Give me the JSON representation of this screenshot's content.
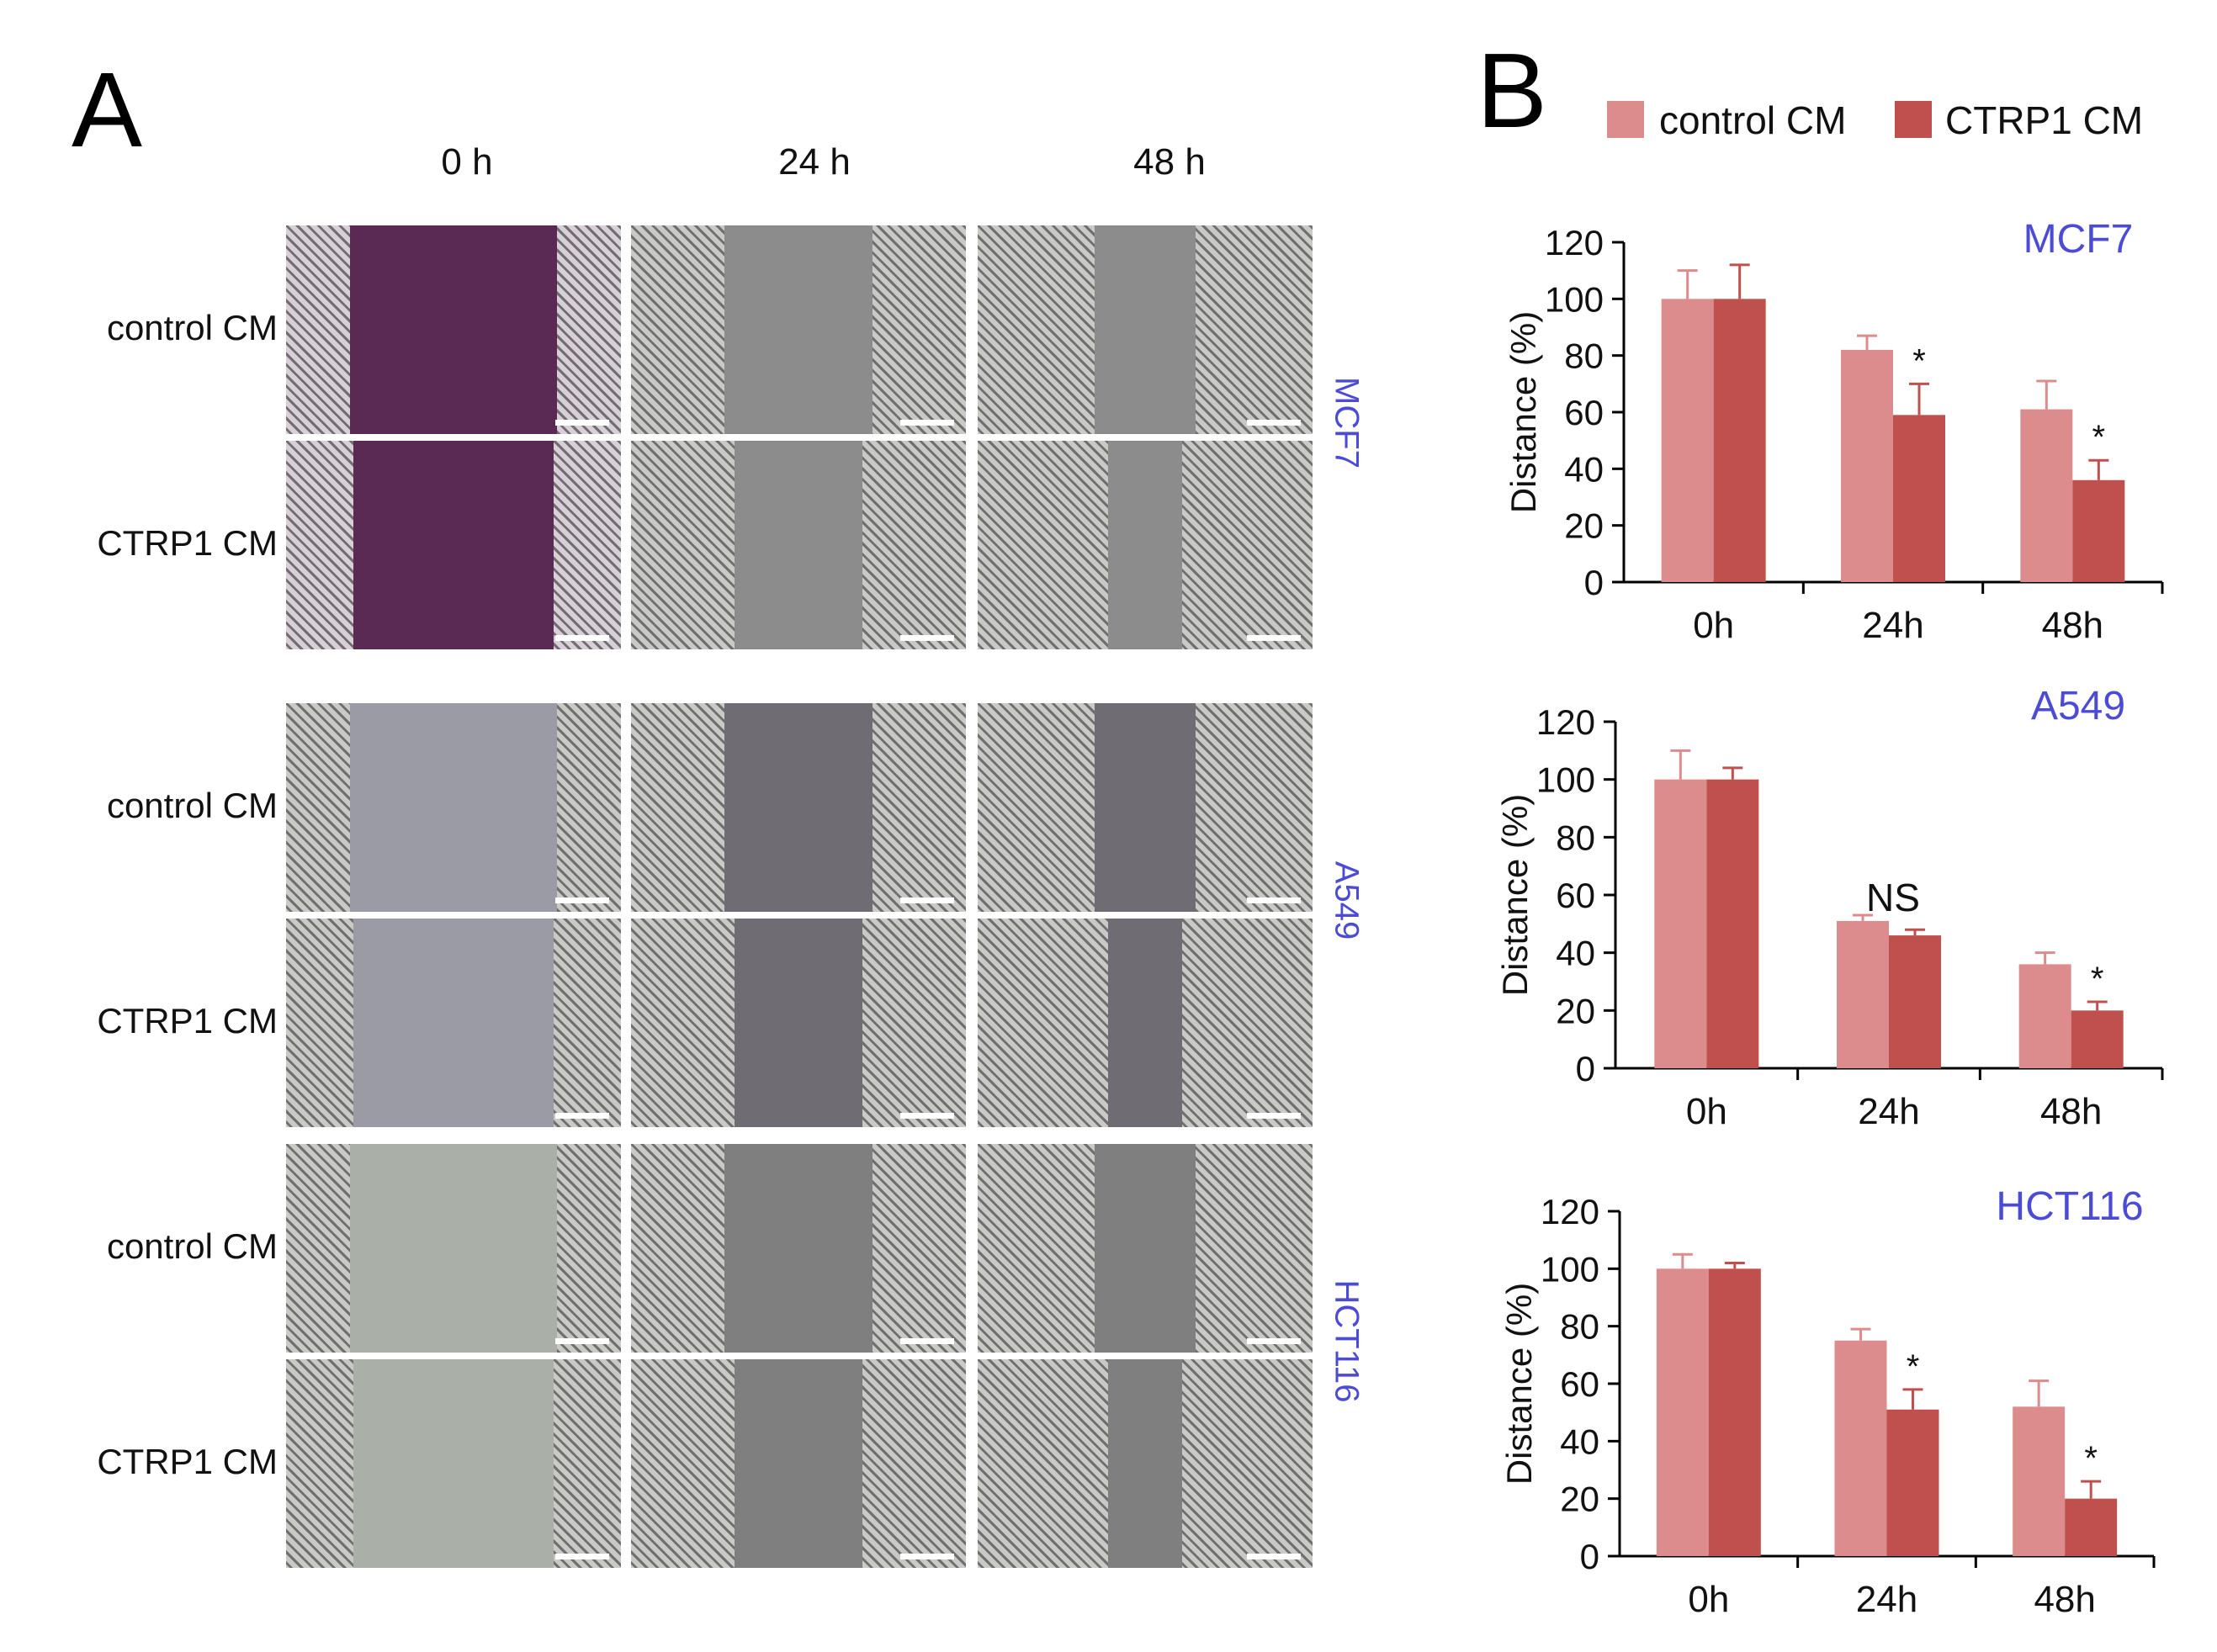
{
  "panel_a": {
    "letter": "A",
    "time_headers": [
      "0 h",
      "24 h",
      "48 h"
    ],
    "cell_lines": [
      {
        "name": "MCF7",
        "rows": [
          "control CM",
          "CTRP1 CM"
        ],
        "tone": "#5a2a55",
        "tone_gap": "#3e1f3e"
      },
      {
        "name": "A549",
        "rows": [
          "control CM",
          "CTRP1 CM"
        ],
        "tone": "#9a9ba4",
        "tone_gap": "#7c7884"
      },
      {
        "name": "HCT116",
        "rows": [
          "control CM",
          "CTRP1 CM"
        ],
        "tone": "#aab0a8",
        "tone_gap": "#a3aaa2"
      }
    ]
  },
  "panel_b": {
    "letter": "B",
    "legend": [
      {
        "label": "control CM",
        "color": "#dc8c8c"
      },
      {
        "label": "CTRP1 CM",
        "color": "#c0504d"
      }
    ]
  },
  "chart_data": [
    {
      "type": "bar",
      "title": "MCF7",
      "ylabel": "Distance (%)",
      "xlabel": "",
      "ylim": [
        0,
        120
      ],
      "yticks": [
        0,
        20,
        40,
        60,
        80,
        100,
        120
      ],
      "categories": [
        "0h",
        "24h",
        "48h"
      ],
      "series": [
        {
          "name": "control CM",
          "values": [
            100,
            82,
            61
          ],
          "errors": [
            10,
            5,
            10
          ]
        },
        {
          "name": "CTRP1 CM",
          "values": [
            100,
            59,
            36
          ],
          "errors": [
            12,
            11,
            7
          ]
        }
      ],
      "annotations": [
        {
          "category": "24h",
          "text": "*"
        },
        {
          "category": "48h",
          "text": "*"
        }
      ]
    },
    {
      "type": "bar",
      "title": "A549",
      "ylabel": "Distance (%)",
      "xlabel": "",
      "ylim": [
        0,
        120
      ],
      "yticks": [
        0,
        20,
        40,
        60,
        80,
        100,
        120
      ],
      "categories": [
        "0h",
        "24h",
        "48h"
      ],
      "series": [
        {
          "name": "control CM",
          "values": [
            100,
            51,
            36
          ],
          "errors": [
            10,
            2,
            4
          ]
        },
        {
          "name": "CTRP1 CM",
          "values": [
            100,
            46,
            20
          ],
          "errors": [
            4,
            2,
            3
          ]
        }
      ],
      "annotations": [
        {
          "category": "24h",
          "text": "NS"
        },
        {
          "category": "48h",
          "text": "*"
        }
      ]
    },
    {
      "type": "bar",
      "title": "HCT116",
      "ylabel": "Distance (%)",
      "xlabel": "",
      "ylim": [
        0,
        120
      ],
      "yticks": [
        0,
        20,
        40,
        60,
        80,
        100,
        120
      ],
      "categories": [
        "0h",
        "24h",
        "48h"
      ],
      "series": [
        {
          "name": "control CM",
          "values": [
            100,
            75,
            52
          ],
          "errors": [
            5,
            4,
            9
          ]
        },
        {
          "name": "CTRP1 CM",
          "values": [
            100,
            51,
            20
          ],
          "errors": [
            2,
            7,
            6
          ]
        }
      ],
      "annotations": [
        {
          "category": "24h",
          "text": "*"
        },
        {
          "category": "48h",
          "text": "*"
        }
      ]
    }
  ]
}
